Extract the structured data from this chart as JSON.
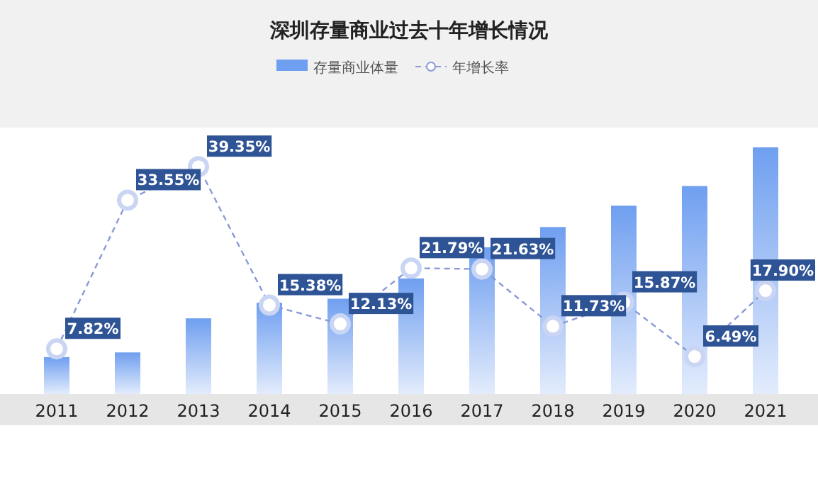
{
  "chart_data": {
    "type": "bar",
    "title": "深圳存量商业过去十年增长情况",
    "categories": [
      "2011",
      "2012",
      "2013",
      "2014",
      "2015",
      "2016",
      "2017",
      "2018",
      "2019",
      "2020",
      "2021"
    ],
    "legend": "top",
    "marker": "circle",
    "line_style": "dashed",
    "series": [
      {
        "name": "存量商业体量",
        "color": "#6f9ff0",
        "values": [
          6.4,
          7.2,
          13.1,
          15.8,
          16.5,
          20,
          25.4,
          28.9,
          32.6,
          36,
          42.7
        ]
      },
      {
        "name": "年增长率",
        "type": "line",
        "color": "#8a9ad6",
        "values": [
          7.82,
          33.55,
          39.35,
          15.38,
          12.13,
          21.79,
          21.63,
          11.73,
          15.87,
          6.49,
          17.9
        ],
        "value_labels": [
          "7.82%",
          "33.55%",
          "39.35%",
          "15.38%",
          "12.13%",
          "21.79%",
          "21.63%",
          "11.73%",
          "15.87%",
          "6.49%",
          "17.90%"
        ]
      }
    ]
  }
}
